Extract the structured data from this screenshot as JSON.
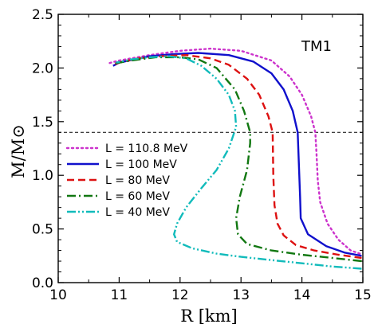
{
  "chart_data": {
    "type": "line",
    "xlabel": "R [km]",
    "ylabel": "M/M⊙",
    "xlim": [
      10,
      15
    ],
    "ylim": [
      0,
      2.5
    ],
    "xticks": [
      "10",
      "11",
      "12",
      "13",
      "14",
      "15"
    ],
    "yticks": [
      "0.0",
      "0.5",
      "1.0",
      "1.5",
      "2.0",
      "2.5"
    ],
    "annotation": "TM1",
    "reference_line": {
      "y": 1.4,
      "style": "dashed",
      "color": "#000000"
    },
    "legend_placement": "center-left",
    "grid": false,
    "series": [
      {
        "name": "L = 110.8 MeV",
        "color": "#cc33cc",
        "dash": "dotted",
        "x": [
          14.95,
          14.8,
          14.6,
          14.42,
          14.3,
          14.26,
          14.24,
          14.22,
          14.15,
          14.0,
          13.8,
          13.5,
          13.0,
          12.5,
          12.0,
          11.5,
          11.0,
          10.8
        ],
        "y": [
          0.27,
          0.3,
          0.4,
          0.55,
          0.75,
          0.95,
          1.2,
          1.4,
          1.55,
          1.75,
          1.92,
          2.07,
          2.16,
          2.18,
          2.16,
          2.12,
          2.07,
          2.04
        ]
      },
      {
        "name": "L = 100 MeV",
        "color": "#1010cc",
        "dash": "solid",
        "x": [
          14.98,
          14.7,
          14.4,
          14.1,
          13.98,
          13.97,
          13.95,
          13.93,
          13.85,
          13.7,
          13.5,
          13.2,
          12.8,
          12.3,
          11.9,
          11.5,
          11.0,
          10.9
        ],
        "y": [
          0.25,
          0.28,
          0.34,
          0.45,
          0.6,
          0.8,
          1.1,
          1.4,
          1.6,
          1.8,
          1.95,
          2.06,
          2.12,
          2.14,
          2.13,
          2.11,
          2.05,
          2.02
        ]
      },
      {
        "name": "L = 80 MeV",
        "color": "#dd1111",
        "dash": "dashed",
        "x": [
          14.98,
          14.6,
          14.2,
          13.9,
          13.7,
          13.6,
          13.55,
          13.53,
          13.52,
          13.45,
          13.3,
          13.1,
          12.8,
          12.5,
          12.1,
          11.7,
          11.3,
          11.0,
          10.9
        ],
        "y": [
          0.23,
          0.26,
          0.3,
          0.35,
          0.44,
          0.55,
          0.72,
          1.0,
          1.4,
          1.55,
          1.75,
          1.9,
          2.03,
          2.09,
          2.12,
          2.11,
          2.09,
          2.05,
          2.03
        ]
      },
      {
        "name": "L = 60 MeV",
        "color": "#117711",
        "dash": "dashdot",
        "x": [
          14.98,
          14.5,
          14.0,
          13.5,
          13.1,
          12.95,
          12.92,
          12.98,
          13.1,
          13.15,
          13.15,
          13.05,
          12.9,
          12.6,
          12.3,
          12.0,
          11.6,
          11.2,
          10.9
        ],
        "y": [
          0.2,
          0.23,
          0.26,
          0.3,
          0.36,
          0.45,
          0.6,
          0.8,
          1.05,
          1.3,
          1.4,
          1.6,
          1.8,
          2.0,
          2.08,
          2.1,
          2.1,
          2.07,
          2.04
        ]
      },
      {
        "name": "L = 40 MeV",
        "color": "#11bbbb",
        "dash": "dashdotdot",
        "x": [
          14.98,
          14.5,
          14.0,
          13.5,
          13.0,
          12.6,
          12.2,
          11.95,
          11.9,
          11.95,
          12.1,
          12.35,
          12.6,
          12.8,
          12.92,
          12.9,
          12.8,
          12.6,
          12.35,
          12.1,
          11.8,
          11.5,
          11.2,
          10.95
        ],
        "y": [
          0.13,
          0.15,
          0.18,
          0.21,
          0.24,
          0.27,
          0.32,
          0.38,
          0.45,
          0.55,
          0.7,
          0.88,
          1.05,
          1.25,
          1.45,
          1.6,
          1.75,
          1.9,
          2.02,
          2.09,
          2.11,
          2.1,
          2.08,
          2.05
        ]
      }
    ]
  }
}
